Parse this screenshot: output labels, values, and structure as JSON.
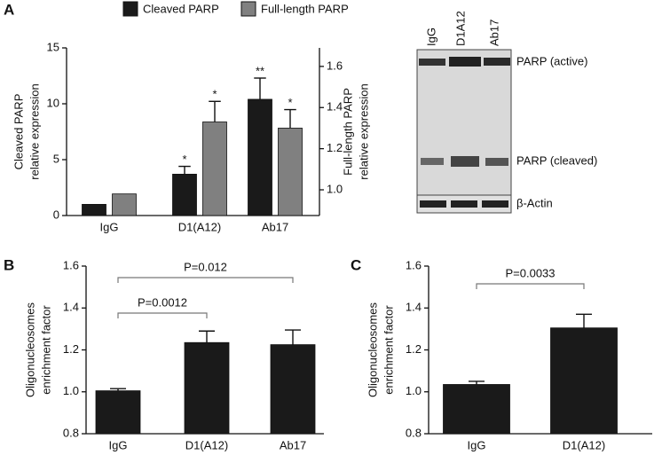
{
  "chart_data": [
    {
      "panel": "A",
      "type": "bar",
      "categories": [
        "IgG",
        "D1(A12)",
        "Ab17"
      ],
      "ylabel": [
        "Cleaved PARP",
        "relative expression"
      ],
      "y2label": [
        "Full-length PARP",
        "relative expression"
      ],
      "ylim": [
        0,
        15
      ],
      "yticks": [
        0,
        5,
        10,
        15
      ],
      "y2lim": [
        0.875,
        1.69
      ],
      "y2ticks": [
        {
          "value": 1,
          "label": "1.0"
        },
        {
          "value": 1.2,
          "label": "1.2"
        },
        {
          "value": 1.4,
          "label": "1.4"
        },
        {
          "value": 1.6,
          "label": "1.6"
        }
      ],
      "series": [
        {
          "name": "Cleaved PARP",
          "color": "#1a1a1a",
          "values": [
            1,
            3.7,
            10.4
          ],
          "errors": [
            null,
            0.7,
            1.9
          ],
          "significance": [
            null,
            "*",
            "**"
          ]
        },
        {
          "name": "Full-length PARP",
          "color": "#808080",
          "axis": "y2",
          "values": [
            0.98,
            1.33,
            1.3
          ],
          "errors": [
            null,
            0.1,
            0.09
          ],
          "significance": [
            null,
            "*",
            "*"
          ]
        }
      ]
    },
    {
      "panel": "B",
      "type": "bar",
      "categories": [
        "IgG",
        "D1(A12)",
        "Ab17"
      ],
      "ylabel": [
        "Oligonucleosomes",
        "enrichment factor"
      ],
      "ylim": [
        0.8,
        1.6
      ],
      "yticks": [
        {
          "value": 0.8,
          "label": "0.8"
        },
        {
          "value": 1,
          "label": "1.0"
        },
        {
          "value": 1.2,
          "label": "1.2"
        },
        {
          "value": 1.4,
          "label": "1.4"
        },
        {
          "value": 1.6,
          "label": "1.6"
        }
      ],
      "color": "#1a1a1a",
      "values": [
        1.005,
        1.235,
        1.225
      ],
      "errors": [
        0.01,
        0.055,
        0.07
      ],
      "annotations": [
        "P=0.0012",
        "P=0.012"
      ]
    },
    {
      "panel": "C",
      "type": "bar",
      "categories": [
        "IgG",
        "D1(A12)"
      ],
      "ylabel": [
        "Oligonucleosomes",
        "enrichment factor"
      ],
      "ylim": [
        0.8,
        1.6
      ],
      "yticks": [
        {
          "value": 0.8,
          "label": "0.8"
        },
        {
          "value": 1,
          "label": "1.0"
        },
        {
          "value": 1.2,
          "label": "1.2"
        },
        {
          "value": 1.4,
          "label": "1.4"
        },
        {
          "value": 1.6,
          "label": "1.6"
        }
      ],
      "color": "#1a1a1a",
      "values": [
        1.035,
        1.305
      ],
      "errors": [
        0.015,
        0.065
      ],
      "annotations": [
        "P=0.0033"
      ]
    }
  ],
  "blot": {
    "lanes": [
      "IgG",
      "D1A12",
      "Ab17"
    ],
    "bands": [
      "PARP (active)",
      "PARP (cleaved)",
      "β-Actin"
    ]
  }
}
